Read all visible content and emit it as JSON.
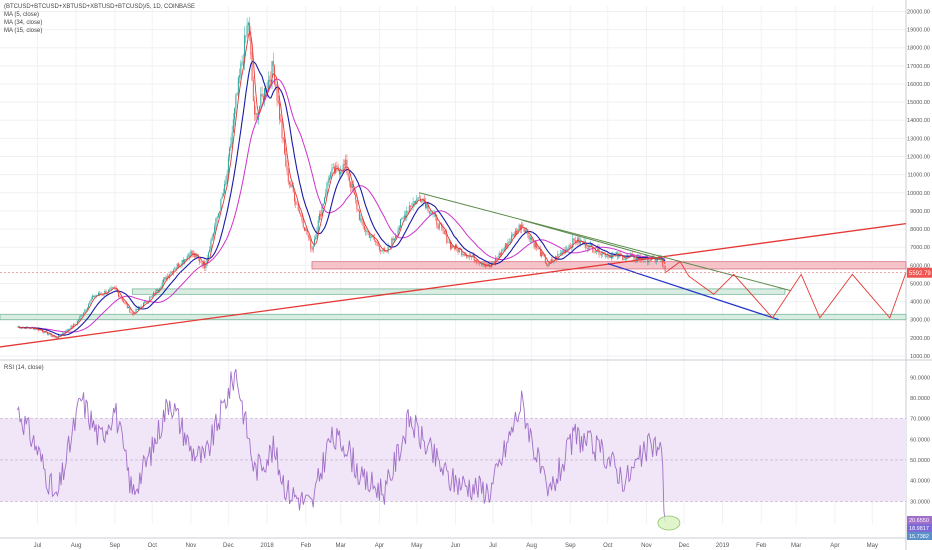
{
  "chart_data": [
    {
      "type": "candlestick",
      "title": "(BTCUSD+BTCUSD+XBTUSD+XBTUSD+BTCUSD)/5, 1D, COINBASE",
      "indicators": [
        "MA (5, close)",
        "MA (34, close)",
        "MA (15, close)"
      ],
      "y_ticks": [
        1000,
        2000,
        3000,
        4000,
        5000,
        6000,
        7000,
        8000,
        9000,
        10000,
        11000,
        12000,
        13000,
        14000,
        15000,
        16000,
        17000,
        18000,
        19000,
        20000
      ],
      "y_tick_labels": [
        "1000.00",
        "2000.00",
        "3000.00",
        "4000.00",
        "5000.00",
        "6000.00",
        "7000.00",
        "8000.00",
        "9000.00",
        "10000.00",
        "11000.00",
        "12000.00",
        "13000.00",
        "14000.00",
        "15000.00",
        "16000.00",
        "17000.00",
        "18000.00",
        "19000.00",
        "20000.00"
      ],
      "ylim": [
        1000,
        20300
      ],
      "last_price_label": "5592.79",
      "price_path": [
        [
          "2017-06-15",
          2600
        ],
        [
          "2017-07-01",
          2500
        ],
        [
          "2017-07-16",
          2000
        ],
        [
          "2017-08-01",
          2800
        ],
        [
          "2017-08-15",
          4300
        ],
        [
          "2017-09-01",
          4700
        ],
        [
          "2017-09-15",
          3300
        ],
        [
          "2017-10-01",
          4300
        ],
        [
          "2017-10-15",
          5600
        ],
        [
          "2017-11-01",
          6700
        ],
        [
          "2017-11-12",
          6000
        ],
        [
          "2017-11-29",
          10500
        ],
        [
          "2017-12-07",
          15000
        ],
        [
          "2017-12-17",
          19500
        ],
        [
          "2017-12-22",
          14000
        ],
        [
          "2018-01-06",
          17000
        ],
        [
          "2018-01-17",
          11000
        ],
        [
          "2018-02-06",
          6900
        ],
        [
          "2018-02-20",
          11000
        ],
        [
          "2018-03-05",
          11500
        ],
        [
          "2018-03-18",
          8200
        ],
        [
          "2018-04-06",
          6600
        ],
        [
          "2018-04-25",
          9300
        ],
        [
          "2018-05-05",
          9800
        ],
        [
          "2018-05-28",
          7100
        ],
        [
          "2018-06-29",
          5900
        ],
        [
          "2018-07-24",
          8300
        ],
        [
          "2018-08-14",
          6000
        ],
        [
          "2018-09-05",
          7400
        ],
        [
          "2018-09-30",
          6600
        ],
        [
          "2018-10-15",
          6450
        ],
        [
          "2018-11-13",
          6300
        ],
        [
          "2018-11-16",
          5592
        ]
      ],
      "horizontal_zones": [
        [
          5800,
          6200
        ],
        [
          4400,
          4700
        ],
        [
          3000,
          3300
        ]
      ],
      "rsi": {
        "label": "RSI (14, close)",
        "y_ticks": [
          30,
          40,
          50,
          60,
          70,
          80,
          90
        ],
        "y_tick_labels": [
          "30.0000",
          "40.0000",
          "50.0000",
          "60.0000",
          "70.0000",
          "80.0000",
          "90.0000"
        ],
        "band": [
          30,
          70
        ],
        "ylim": [
          19,
          96
        ],
        "right_labels": [
          "20.6550",
          "18.9817",
          "15.7382"
        ],
        "path": [
          [
            "2017-06-15",
            75
          ],
          [
            "2017-07-01",
            55
          ],
          [
            "2017-07-16",
            30
          ],
          [
            "2017-08-05",
            80
          ],
          [
            "2017-08-20",
            60
          ],
          [
            "2017-09-01",
            75
          ],
          [
            "2017-09-15",
            34
          ],
          [
            "2017-10-01",
            55
          ],
          [
            "2017-10-15",
            80
          ],
          [
            "2017-11-01",
            55
          ],
          [
            "2017-11-12",
            50
          ],
          [
            "2017-12-07",
            93
          ],
          [
            "2017-12-22",
            45
          ],
          [
            "2018-01-06",
            55
          ],
          [
            "2018-01-17",
            35
          ],
          [
            "2018-02-06",
            28
          ],
          [
            "2018-02-20",
            60
          ],
          [
            "2018-03-05",
            58
          ],
          [
            "2018-03-18",
            40
          ],
          [
            "2018-04-06",
            35
          ],
          [
            "2018-04-25",
            70
          ],
          [
            "2018-05-05",
            60
          ],
          [
            "2018-05-28",
            40
          ],
          [
            "2018-06-29",
            35
          ],
          [
            "2018-07-24",
            78
          ],
          [
            "2018-08-14",
            32
          ],
          [
            "2018-09-05",
            62
          ],
          [
            "2018-09-30",
            52
          ],
          [
            "2018-10-15",
            40
          ],
          [
            "2018-11-05",
            58
          ],
          [
            "2018-11-13",
            55
          ],
          [
            "2018-11-16",
            18
          ]
        ]
      },
      "x_tick_labels": [
        [
          "2017-07-01",
          "Jul"
        ],
        [
          "2017-08-01",
          "Aug"
        ],
        [
          "2017-09-01",
          "Sep"
        ],
        [
          "2017-10-01",
          "Oct"
        ],
        [
          "2017-11-01",
          "Nov"
        ],
        [
          "2017-12-01",
          "Dec"
        ],
        [
          "2018-01-01",
          "2018"
        ],
        [
          "2018-02-01",
          "Feb"
        ],
        [
          "2018-03-01",
          "Mar"
        ],
        [
          "2018-04-01",
          "Apr"
        ],
        [
          "2018-05-01",
          "May"
        ],
        [
          "2018-06-01",
          "Jun"
        ],
        [
          "2018-07-01",
          "Jul"
        ],
        [
          "2018-08-01",
          "Aug"
        ],
        [
          "2018-09-01",
          "Sep"
        ],
        [
          "2018-10-01",
          "Oct"
        ],
        [
          "2018-11-01",
          "Nov"
        ],
        [
          "2018-12-01",
          "Dec"
        ],
        [
          "2019-01-01",
          "2019"
        ],
        [
          "2019-02-01",
          "Feb"
        ],
        [
          "2019-03-01",
          "Mar"
        ],
        [
          "2019-04-01",
          "Apr"
        ],
        [
          "2019-05-01",
          "May"
        ]
      ],
      "xlim": [
        "2017-06-01",
        "2019-05-28"
      ],
      "colors": {
        "up": "#26a69a",
        "down": "#ef5350",
        "ma5": "#e53935",
        "ma34": "#cc33cc",
        "ma15": "#1a1aa6",
        "trend_red": "#e53935",
        "trend_blue": "#2233cc",
        "trend_green": "#5b8a4a",
        "zone_red": "#f2b6bd",
        "zone_green": "#cfe8dc",
        "rsi_line": "#a070c8",
        "rsi_band": "#f1e6f7"
      }
    }
  ]
}
